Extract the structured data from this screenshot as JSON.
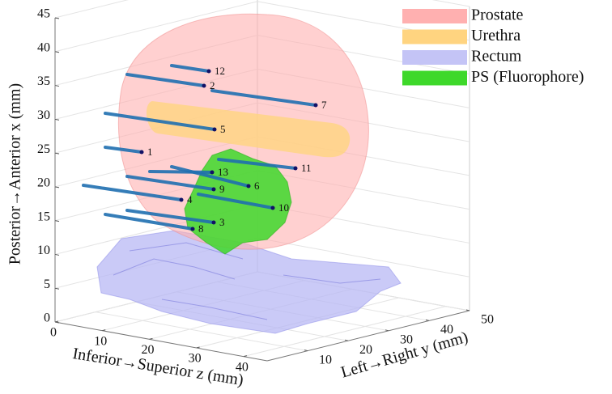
{
  "chart_data": {
    "type": "volume3d",
    "x_label": "Posterior→Anterior x (mm)",
    "y_label": "Left→Right y (mm)",
    "z_label": "Inferior→Superior z (mm)",
    "xlim": [
      0,
      45
    ],
    "xticks": [
      0,
      5,
      10,
      15,
      20,
      25,
      30,
      35,
      40,
      45
    ],
    "ylim": [
      0,
      50
    ],
    "yticks": [
      10,
      20,
      30,
      40,
      50
    ],
    "zlim": [
      0,
      45
    ],
    "zticks": [
      0,
      10,
      20,
      30,
      40
    ],
    "grid": true,
    "legend": "top-right",
    "series": [
      {
        "name": "Prostate",
        "color": "#ffb0b0"
      },
      {
        "name": "Urethra",
        "color": "#ffd480"
      },
      {
        "name": "Rectum",
        "color": "#c4c4f6"
      },
      {
        "name": "PS (Fluorophore)",
        "color": "#3ed82a"
      }
    ],
    "needle_color": "#1f6fb0",
    "needle_labels": [
      "1",
      "2",
      "3",
      "4",
      "5",
      "6",
      "7",
      "8",
      "9",
      "10",
      "11",
      "12",
      "13"
    ]
  }
}
